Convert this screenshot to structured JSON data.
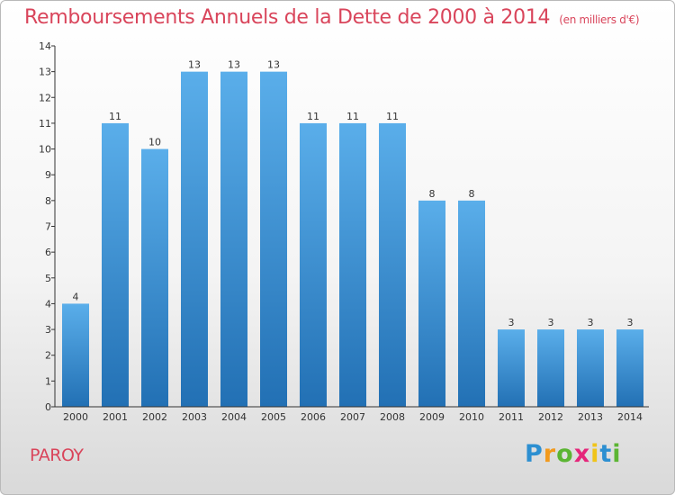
{
  "header": {
    "title": "Remboursements Annuels de la Dette de 2000 à 2014",
    "unit": "(en milliers d'€)"
  },
  "footer": {
    "commune": "PAROY",
    "logo_letters": [
      "P",
      "r",
      "o",
      "x",
      "i",
      "t",
      "i"
    ],
    "logo_colors": [
      "#2c8fd1",
      "#f29a1d",
      "#5bb533",
      "#e5267a",
      "#f0c419",
      "#2c8fd1",
      "#5bb533"
    ]
  },
  "colors": {
    "title": "#d9455b",
    "bar_top": "#5aaeea",
    "bar_bottom": "#2270b4",
    "axis": "#333333"
  },
  "chart_data": {
    "type": "bar",
    "title": "Remboursements Annuels de la Dette de 2000 à 2014",
    "subtitle": "(en milliers d'€)",
    "categories": [
      "2000",
      "2001",
      "2002",
      "2003",
      "2004",
      "2005",
      "2006",
      "2007",
      "2008",
      "2009",
      "2010",
      "2011",
      "2012",
      "2013",
      "2014"
    ],
    "values": [
      4,
      11,
      10,
      13,
      13,
      13,
      11,
      11,
      11,
      8,
      8,
      3,
      3,
      3,
      3
    ],
    "ylim": [
      0,
      14
    ],
    "yticks": [
      0,
      1,
      2,
      3,
      4,
      5,
      6,
      7,
      8,
      9,
      10,
      11,
      12,
      13,
      14
    ],
    "grid": false,
    "legend": "none"
  }
}
